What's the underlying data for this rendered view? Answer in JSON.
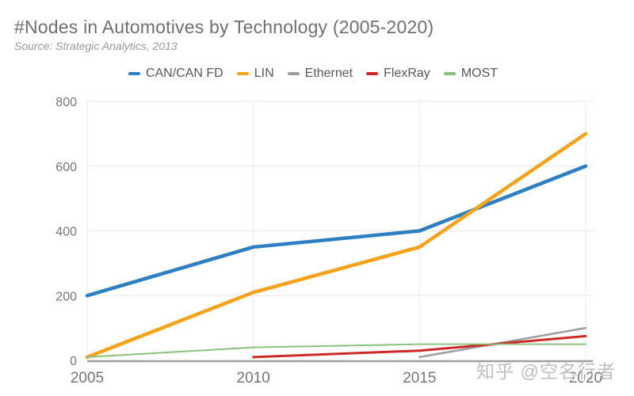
{
  "title": "#Nodes in Automotives by Technology (2005-2020)",
  "source": "Source: Strategic Analytics, 2013",
  "watermark": "知乎 @空名行者",
  "colors": {
    "title_text": "#6f6f6f",
    "source_text": "#9a9a9a",
    "tick_text": "#757575",
    "gridline": "#e7e7e7",
    "axis_line": "#9e9e9e",
    "can": "#2e7fc1",
    "lin": "#f5a21c",
    "ethernet": "#9e9e9e",
    "flexray": "#cb2a27",
    "most": "#8cc17c"
  },
  "chart_data": {
    "type": "line",
    "title": "#Nodes in Automotives by Technology (2005-2020)",
    "subtitle": "Source: Strategic Analytics, 2013",
    "x": [
      2005,
      2010,
      2015,
      2020
    ],
    "x_ticks": [
      "2005",
      "2010",
      "2015",
      "2020"
    ],
    "y_ticks": [
      0,
      200,
      400,
      600,
      800
    ],
    "ylim": [
      0,
      800
    ],
    "xlabel": "",
    "ylabel": "",
    "grid": true,
    "legend_position": "top",
    "series": [
      {
        "name": "CAN/CAN FD",
        "color": "#2e7fc1",
        "width": 4.5,
        "values": [
          200,
          350,
          400,
          600
        ]
      },
      {
        "name": "LIN",
        "color": "#f5a21c",
        "width": 4.5,
        "values": [
          10,
          210,
          350,
          700
        ]
      },
      {
        "name": "Ethernet",
        "color": "#9e9e9e",
        "width": 2.5,
        "values": [
          null,
          null,
          10,
          100
        ]
      },
      {
        "name": "FlexRay",
        "color": "#cb2a27",
        "width": 3,
        "values": [
          null,
          10,
          30,
          75
        ]
      },
      {
        "name": "MOST",
        "color": "#8cc17c",
        "width": 2,
        "values": [
          10,
          40,
          50,
          50
        ]
      }
    ]
  }
}
